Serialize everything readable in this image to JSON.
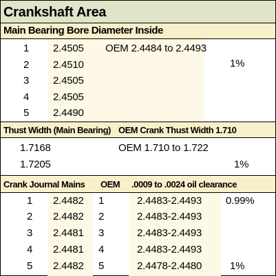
{
  "title": "Crankshaft Area",
  "main_bearing": {
    "header": "Main Bearing Bore Diameter Inside",
    "rows": [
      {
        "num": "1",
        "val": "2.4505"
      },
      {
        "num": "2",
        "val": "2.4510"
      },
      {
        "num": "3",
        "val": "2.4505"
      },
      {
        "num": "4",
        "val": "2.4505"
      },
      {
        "num": "5",
        "val": "2.4490"
      }
    ],
    "oem_range": "OEM 2.4484 to 2.4493",
    "percent": "1%"
  },
  "thrust": {
    "header_left": "Thust Width (Main Bearing)",
    "header_right": "OEM Crank Thust Width 1.710",
    "rows": [
      "1.7168",
      "1.7205"
    ],
    "oem_range": "OEM 1.710 to 1.722",
    "percent": "1%"
  },
  "journal": {
    "header_left": "Crank Journal Mains",
    "header_oem": "OEM",
    "header_clearance": ".0009 to .0024 oil clearance",
    "rows": [
      {
        "num": "1",
        "val": "2.4482",
        "oem": "1",
        "range": "2.4483-2.4493",
        "pct": "0.99%"
      },
      {
        "num": "2",
        "val": "2.4482",
        "oem": "2",
        "range": "2.4483-2.4493",
        "pct": ""
      },
      {
        "num": "3",
        "val": "2.4481",
        "oem": "3",
        "range": "2.4483-2.4493",
        "pct": ""
      },
      {
        "num": "4",
        "val": "2.4481",
        "oem": "4",
        "range": "2.4483-2.4493",
        "pct": ""
      },
      {
        "num": "5",
        "val": "2.4482",
        "oem": "5",
        "range": "2.4478-2.4480",
        "pct": "1%"
      }
    ]
  }
}
